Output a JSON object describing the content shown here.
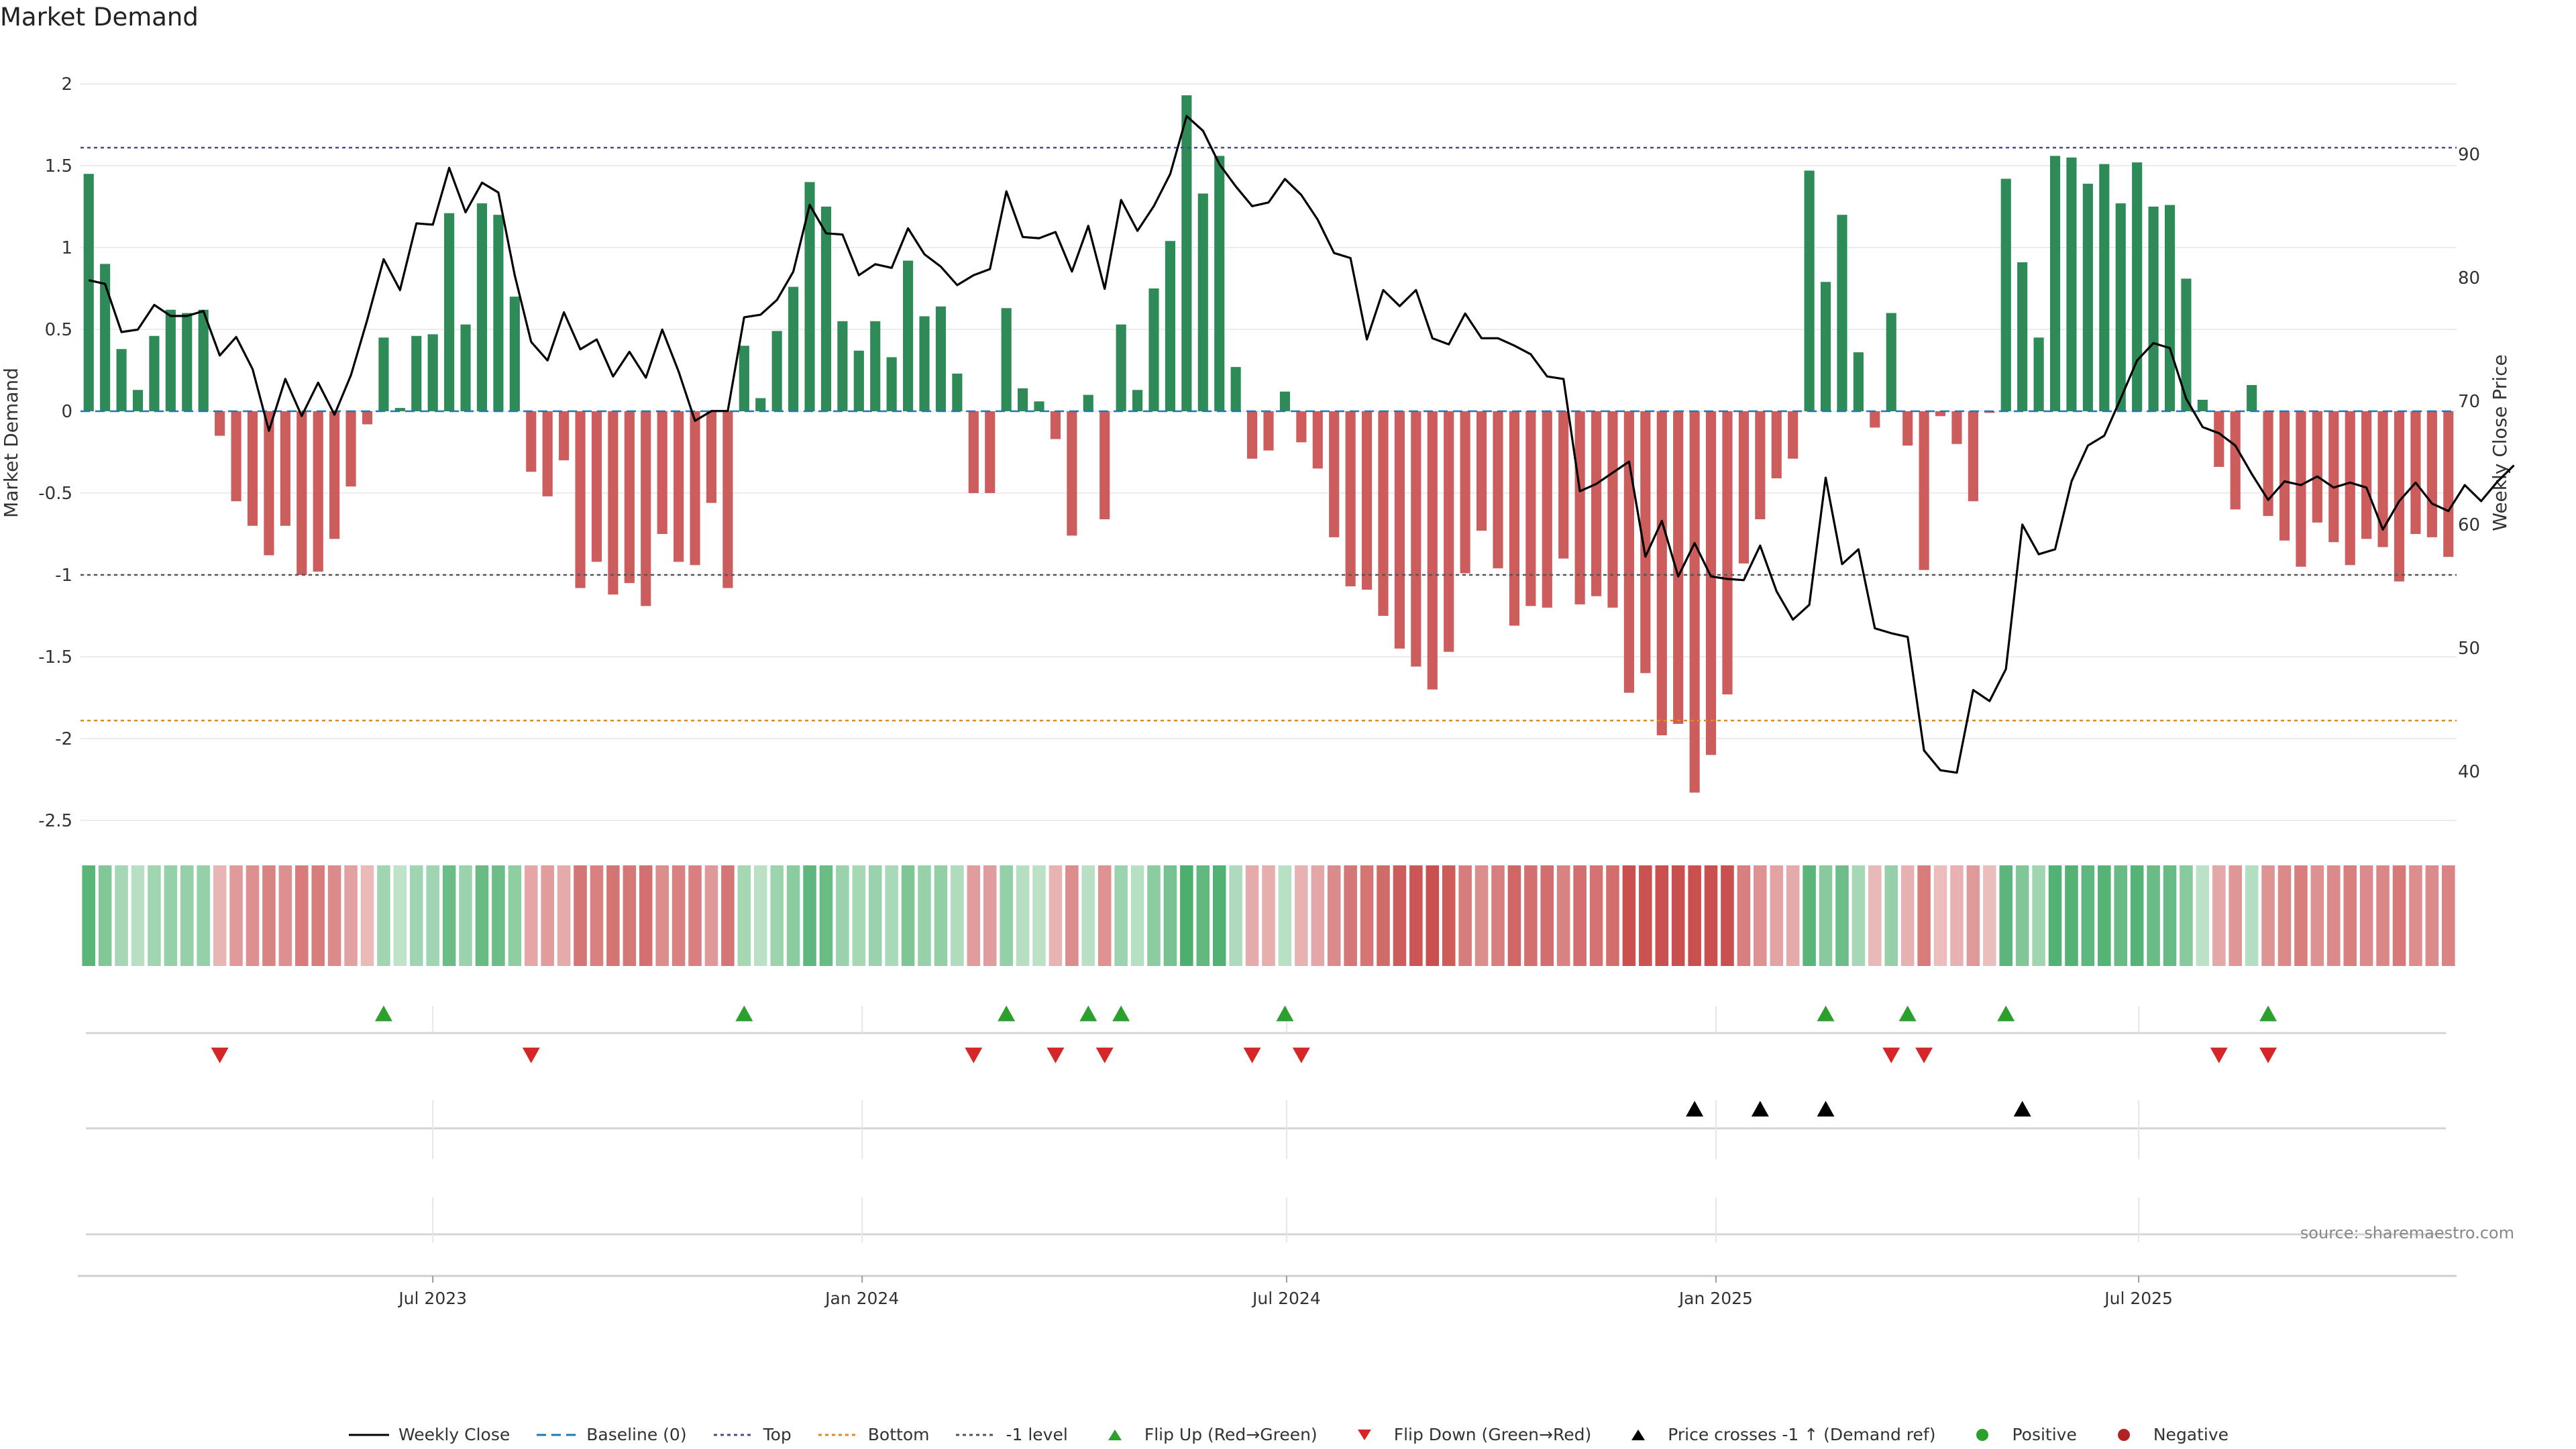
{
  "title": "Market Demand",
  "source": "source: sharemaestro.com",
  "colors": {
    "positive": "#2e8b57",
    "negative": "#cd5c5c",
    "price": "#000000",
    "baseline": "#1f77b4",
    "top": "#4b4b8c",
    "bottom": "#e08a1e",
    "minus1": "#555555",
    "flip_up": "#2ca02c",
    "flip_down": "#d62728",
    "cross": "#000000",
    "dot_pos": "#2ca02c",
    "dot_neg": "#b22222"
  },
  "legend": [
    {
      "key": "line",
      "color": "#000000",
      "label": "Weekly Close"
    },
    {
      "key": "dash",
      "color": "#1f77b4",
      "label": "Baseline (0)"
    },
    {
      "key": "dot",
      "color": "#4b4b8c",
      "label": "Top"
    },
    {
      "key": "dot",
      "color": "#e08a1e",
      "label": "Bottom"
    },
    {
      "key": "dot",
      "color": "#555555",
      "label": "-1 level"
    },
    {
      "key": "tri-up",
      "color": "#2ca02c",
      "label": "Flip Up (Red→Green)"
    },
    {
      "key": "tri-down",
      "color": "#d62728",
      "label": "Flip Down (Green→Red)"
    },
    {
      "key": "tri-up",
      "color": "#000000",
      "label": "Price crosses -1 ↑ (Demand ref)"
    },
    {
      "key": "circle",
      "color": "#2ca02c",
      "label": "Positive"
    },
    {
      "key": "circle",
      "color": "#b22222",
      "label": "Negative"
    }
  ],
  "chart_data": {
    "type": "bar",
    "title": "Market Demand",
    "ylabel": "Market Demand",
    "y2label": "Weekly Close Price",
    "ylim": [
      -2.5,
      2
    ],
    "y2lim": [
      36,
      98
    ],
    "yticks": [
      "2",
      "1.5",
      "1",
      "0.5",
      "0",
      "-0.5",
      "-1",
      "-1.5",
      "-2",
      "-2.5"
    ],
    "y2ticks": [
      "90",
      "80",
      "70",
      "60",
      "50",
      "40"
    ],
    "xticks": [
      {
        "label": "Jul 2023",
        "week": 21.5
      },
      {
        "label": "Jan 2024",
        "week": 47.7
      },
      {
        "label": "Jul 2024",
        "week": 73.6
      },
      {
        "label": "Jan 2025",
        "week": 99.8
      },
      {
        "label": "Jul 2025",
        "week": 125.6
      }
    ],
    "reference_lines": {
      "baseline": 0,
      "top": 1.61,
      "bottom": -1.89,
      "minus1": -1
    },
    "demand": [
      1.45,
      0.9,
      0.38,
      0.13,
      0.46,
      0.62,
      0.6,
      0.62,
      -0.15,
      -0.55,
      -0.7,
      -0.88,
      -0.7,
      -1.0,
      -0.98,
      -0.78,
      -0.46,
      -0.08,
      0.45,
      0.02,
      0.46,
      0.47,
      1.21,
      0.53,
      1.27,
      1.2,
      0.7,
      -0.37,
      -0.52,
      -0.3,
      -1.08,
      -0.92,
      -1.12,
      -1.05,
      -1.19,
      -0.75,
      -0.92,
      -0.94,
      -0.56,
      -1.08,
      0.4,
      0.08,
      0.49,
      0.76,
      1.4,
      1.25,
      0.55,
      0.37,
      0.55,
      0.33,
      0.92,
      0.58,
      0.64,
      0.23,
      -0.5,
      -0.5,
      0.63,
      0.14,
      0.06,
      -0.17,
      -0.76,
      0.1,
      -0.66,
      0.53,
      0.13,
      0.75,
      1.04,
      1.93,
      1.33,
      1.56,
      0.27,
      -0.29,
      -0.24,
      0.12,
      -0.19,
      -0.35,
      -0.77,
      -1.07,
      -1.09,
      -1.25,
      -1.45,
      -1.56,
      -1.7,
      -1.47,
      -0.99,
      -0.73,
      -0.96,
      -1.31,
      -1.19,
      -1.2,
      -0.9,
      -1.18,
      -1.13,
      -1.2,
      -1.72,
      -1.6,
      -1.98,
      -1.91,
      -2.33,
      -2.1,
      -1.73,
      -0.93,
      -0.66,
      -0.41,
      -0.29,
      1.47,
      0.79,
      1.2,
      0.36,
      -0.1,
      0.6,
      -0.21,
      -0.97,
      -0.03,
      -0.2,
      -0.55,
      -0.01,
      1.42,
      0.91,
      0.45,
      1.56,
      1.55,
      1.39,
      1.51,
      1.27,
      1.52,
      1.25,
      1.26,
      0.81,
      0.07,
      -0.34,
      -0.6,
      0.16,
      -0.64,
      -0.79,
      -0.95,
      -0.68,
      -0.8,
      -0.94,
      -0.78,
      -0.83,
      -1.04,
      -0.75,
      -0.77,
      -0.89
    ],
    "price": [
      79.8,
      79.5,
      75.6,
      75.8,
      77.8,
      76.9,
      76.9,
      77.3,
      73.7,
      75.2,
      72.6,
      67.6,
      71.8,
      68.8,
      71.5,
      68.9,
      72.1,
      76.6,
      81.5,
      79.0,
      84.4,
      84.3,
      88.9,
      85.3,
      87.7,
      86.9,
      80.2,
      74.8,
      73.3,
      77.2,
      74.2,
      75.0,
      72.0,
      74.0,
      71.9,
      75.8,
      72.4,
      68.4,
      69.2,
      69.2,
      76.8,
      77.0,
      78.2,
      80.5,
      85.9,
      83.6,
      83.5,
      80.2,
      81.1,
      80.8,
      84.0,
      81.9,
      80.9,
      79.4,
      80.2,
      80.7,
      87.0,
      83.3,
      83.2,
      83.7,
      80.5,
      84.2,
      79.1,
      86.3,
      83.8,
      85.8,
      88.4,
      93.1,
      91.9,
      89.2,
      87.4,
      85.8,
      86.1,
      88.0,
      86.7,
      84.7,
      82.0,
      81.6,
      75.0,
      79.0,
      77.7,
      79.0,
      75.1,
      74.6,
      77.1,
      75.1,
      75.1,
      74.5,
      73.8,
      72.0,
      71.8,
      62.7,
      63.3,
      64.2,
      65.1,
      57.4,
      60.3,
      55.8,
      58.5,
      55.8,
      55.6,
      55.5,
      58.3,
      54.6,
      52.3,
      53.5,
      63.8,
      56.8,
      58.0,
      51.6,
      51.2,
      50.9,
      41.7,
      40.1,
      39.9,
      46.6,
      45.7,
      48.3,
      60.0,
      57.6,
      58.0,
      63.5,
      66.4,
      67.2,
      70.2,
      73.3,
      74.7,
      74.3,
      70.2,
      67.9,
      67.4,
      66.4,
      64.1,
      62.0,
      63.5,
      63.2,
      63.9,
      63.0,
      63.4,
      63.0,
      59.6,
      61.9,
      63.4,
      61.7,
      61.1,
      63.2,
      61.9,
      63.5,
      64.8
    ],
    "flip_up_weeks": [
      18,
      40,
      56,
      61,
      63,
      73,
      106,
      111,
      117,
      133
    ],
    "flip_down_weeks": [
      8,
      27,
      54,
      59,
      62,
      71,
      74,
      110,
      112,
      130,
      133
    ],
    "price_cross_weeks": [
      98,
      102,
      106,
      118
    ]
  }
}
